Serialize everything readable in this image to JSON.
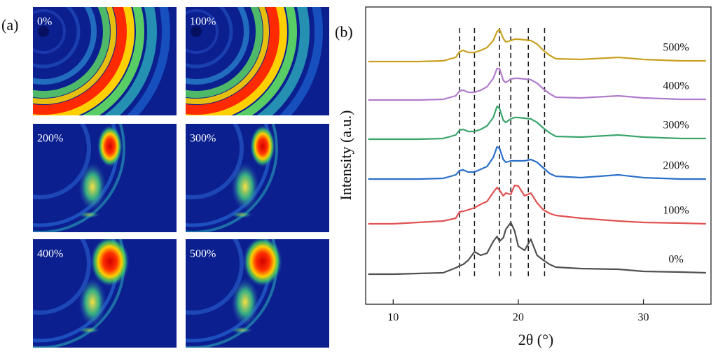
{
  "panel_labels": [
    "(a)",
    "(b)"
  ],
  "images": [
    {
      "label": "0%"
    },
    {
      "label": "100%"
    },
    {
      "label": "200%"
    },
    {
      "label": "300%"
    },
    {
      "label": "400%"
    },
    {
      "label": "500%"
    }
  ],
  "chart_data": {
    "type": "line",
    "xlabel": "2θ (°)",
    "ylabel": "Intensity (a.u.)",
    "xlim": [
      7.8,
      35.4
    ],
    "xticks": [
      10,
      20,
      30
    ],
    "ylim": [
      0,
      425
    ],
    "x": [
      8,
      10,
      12,
      14,
      15,
      15.3,
      15.6,
      16,
      16.5,
      17,
      17.5,
      18,
      18.3,
      18.5,
      18.8,
      19,
      19.4,
      19.7,
      20,
      20.5,
      21,
      21.5,
      22,
      22.5,
      23,
      25,
      28,
      30,
      33,
      35
    ],
    "reference_lines": [
      15.3,
      16.5,
      18.5,
      19.4,
      20.8,
      22.1
    ],
    "series": [
      {
        "name": "0%",
        "color": "#505050",
        "values": [
          43,
          43,
          44,
          45,
          52,
          55,
          57,
          63,
          75,
          70,
          73,
          90,
          97,
          90,
          95,
          107,
          117,
          105,
          83,
          77,
          93,
          70,
          63,
          57,
          53,
          51,
          50,
          47,
          46,
          45
        ]
      },
      {
        "name": "100%",
        "color": "#e05252",
        "values": [
          115,
          115,
          117,
          119,
          123,
          132,
          133,
          135,
          138,
          143,
          147,
          160,
          167,
          163,
          155,
          159,
          157,
          170,
          169,
          155,
          159,
          145,
          135,
          130,
          127,
          123,
          119,
          117,
          116,
          115
        ]
      },
      {
        "name": "200%",
        "color": "#2a6fc9",
        "values": [
          179,
          179,
          179,
          180,
          185,
          191,
          192,
          189,
          189,
          193,
          197,
          210,
          225,
          223,
          207,
          203,
          205,
          205,
          205,
          205,
          207,
          203,
          195,
          187,
          183,
          181,
          185,
          181,
          179,
          179
        ]
      },
      {
        "name": "300%",
        "color": "#3aa46a",
        "values": [
          236,
          236,
          236,
          237,
          242,
          249,
          250,
          247,
          247,
          250,
          255,
          267,
          283,
          280,
          263,
          260,
          265,
          267,
          267,
          266,
          265,
          260,
          252,
          245,
          240,
          239,
          242,
          239,
          237,
          237
        ]
      },
      {
        "name": "400%",
        "color": "#b07ccc",
        "values": [
          292,
          292,
          292,
          293,
          298,
          305,
          306,
          303,
          303,
          306,
          311,
          323,
          337,
          337,
          320,
          317,
          322,
          323,
          323,
          322,
          321,
          316,
          308,
          301,
          296,
          295,
          298,
          295,
          293,
          293
        ]
      },
      {
        "name": "500%",
        "color": "#c9a020",
        "values": [
          347,
          347,
          347,
          348,
          353,
          361,
          363,
          360,
          360,
          363,
          367,
          377,
          390,
          393,
          380,
          375,
          377,
          379,
          379,
          378,
          377,
          372,
          363,
          356,
          351,
          350,
          353,
          350,
          348,
          348
        ]
      }
    ]
  }
}
